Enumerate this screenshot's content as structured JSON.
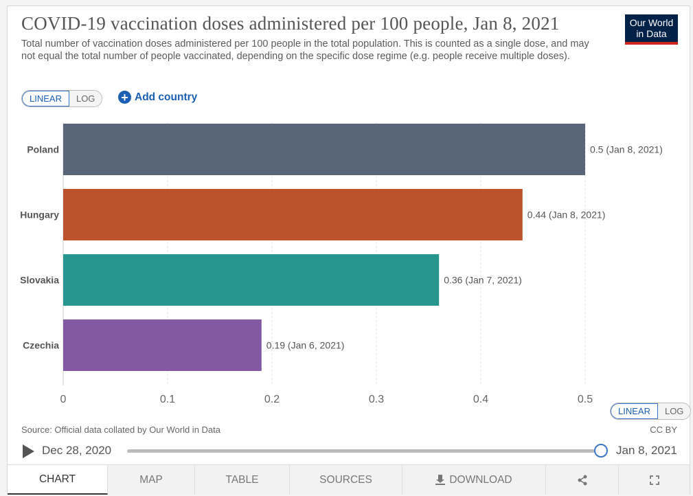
{
  "header": {
    "title": "COVID-19 vaccination doses administered per 100 people, Jan 8, 2021",
    "subtitle": "Total number of vaccination doses administered per 100 people in the total population. This is counted as a single dose, and may not equal the total number of people vaccinated, depending on the specific dose regime (e.g. people receive multiple doses).",
    "logo_line1": "Our World",
    "logo_line2": "in Data"
  },
  "controls": {
    "linear_label": "LINEAR",
    "log_label": "LOG",
    "add_country_label": "Add country"
  },
  "chart_data": {
    "type": "bar",
    "orientation": "horizontal",
    "title": "COVID-19 vaccination doses administered per 100 people, Jan 8, 2021",
    "categories": [
      "Poland",
      "Hungary",
      "Slovakia",
      "Czechia"
    ],
    "values": [
      0.5,
      0.44,
      0.36,
      0.19
    ],
    "data_labels": [
      "0.5 (Jan 8, 2021)",
      "0.44 (Jan 8, 2021)",
      "0.36 (Jan 7, 2021)",
      "0.19 (Jan 6, 2021)"
    ],
    "colors": [
      "#596579",
      "#bc532d",
      "#26968e",
      "#8259a2"
    ],
    "xlim": [
      0,
      0.5
    ],
    "xticks": [
      0,
      0.1,
      0.2,
      0.3,
      0.4,
      0.5
    ],
    "xtick_labels": [
      "0",
      "0.1",
      "0.2",
      "0.3",
      "0.4",
      "0.5"
    ],
    "grid": true,
    "xlabel": "",
    "ylabel": ""
  },
  "footer": {
    "source": "Source: Official data collated by Our World in Data",
    "license": "CC BY"
  },
  "timeline": {
    "start_label": "Dec 28, 2020",
    "end_label": "Jan 8, 2021",
    "position": 1.0
  },
  "tabs": [
    {
      "label": "CHART"
    },
    {
      "label": "MAP"
    },
    {
      "label": "TABLE"
    },
    {
      "label": "SOURCES"
    },
    {
      "label": "DOWNLOAD"
    },
    {
      "label": ""
    },
    {
      "label": ""
    }
  ]
}
